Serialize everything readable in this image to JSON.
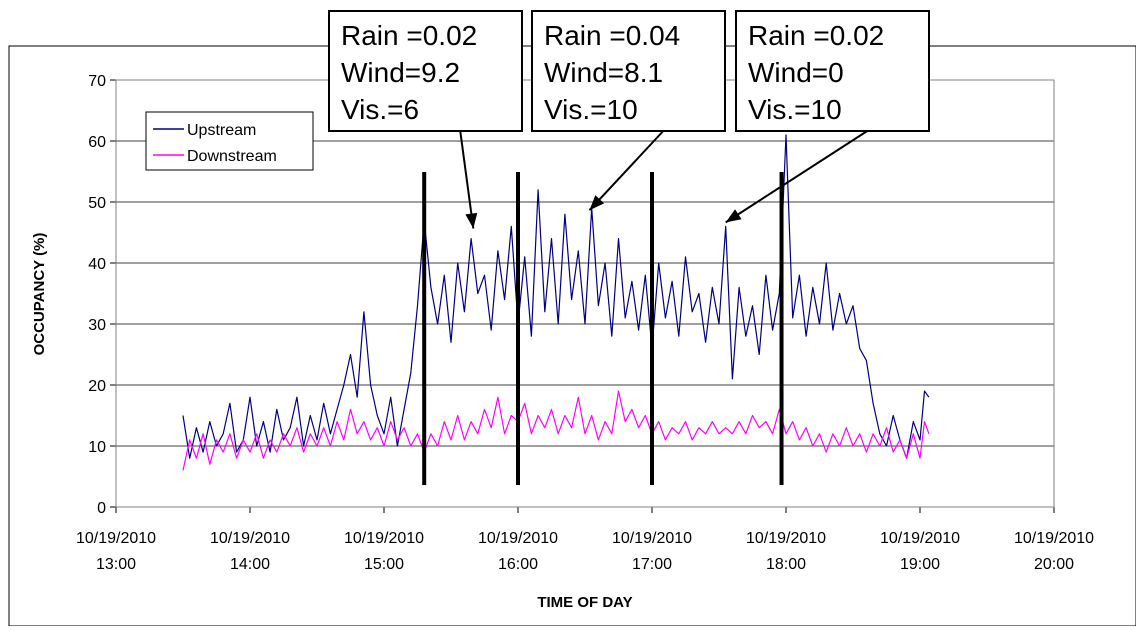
{
  "chart_data": {
    "type": "line",
    "xlabel": "TIME OF DAY",
    "ylabel": "OCCUPANCY (%)",
    "ylim": [
      0,
      70
    ],
    "y_ticks": [
      0,
      10,
      20,
      30,
      40,
      50,
      60,
      70
    ],
    "x_range": [
      "10/19/2010 13:00",
      "10/19/2010 20:00"
    ],
    "x_ticks": [
      {
        "date": "10/19/2010",
        "time": "13:00"
      },
      {
        "date": "10/19/2010",
        "time": "14:00"
      },
      {
        "date": "10/19/2010",
        "time": "15:00"
      },
      {
        "date": "10/19/2010",
        "time": "16:00"
      },
      {
        "date": "10/19/2010",
        "time": "17:00"
      },
      {
        "date": "10/19/2010",
        "time": "18:00"
      },
      {
        "date": "10/19/2010",
        "time": "19:00"
      },
      {
        "date": "10/19/2010",
        "time": "20:00"
      }
    ],
    "grid": true,
    "legend_position": "top-left",
    "series": [
      {
        "name": "Upstream",
        "color": "#000080",
        "points": [
          [
            "13:30",
            15
          ],
          [
            "13:33",
            8
          ],
          [
            "13:36",
            13
          ],
          [
            "13:39",
            9
          ],
          [
            "13:42",
            14
          ],
          [
            "13:45",
            10
          ],
          [
            "13:48",
            12
          ],
          [
            "13:51",
            17
          ],
          [
            "13:54",
            9
          ],
          [
            "13:57",
            11
          ],
          [
            "14:00",
            18
          ],
          [
            "14:03",
            10
          ],
          [
            "14:06",
            14
          ],
          [
            "14:09",
            9
          ],
          [
            "14:12",
            16
          ],
          [
            "14:15",
            11
          ],
          [
            "14:18",
            13
          ],
          [
            "14:21",
            18
          ],
          [
            "14:24",
            10
          ],
          [
            "14:27",
            15
          ],
          [
            "14:30",
            11
          ],
          [
            "14:33",
            17
          ],
          [
            "14:36",
            12
          ],
          [
            "14:39",
            16
          ],
          [
            "14:42",
            20
          ],
          [
            "14:45",
            25
          ],
          [
            "14:48",
            18
          ],
          [
            "14:51",
            32
          ],
          [
            "14:54",
            20
          ],
          [
            "14:57",
            15
          ],
          [
            "15:00",
            12
          ],
          [
            "15:03",
            18
          ],
          [
            "15:06",
            10
          ],
          [
            "15:09",
            16
          ],
          [
            "15:12",
            22
          ],
          [
            "15:15",
            33
          ],
          [
            "15:18",
            47
          ],
          [
            "15:21",
            36
          ],
          [
            "15:24",
            30
          ],
          [
            "15:27",
            38
          ],
          [
            "15:30",
            27
          ],
          [
            "15:33",
            40
          ],
          [
            "15:36",
            32
          ],
          [
            "15:39",
            44
          ],
          [
            "15:42",
            35
          ],
          [
            "15:45",
            38
          ],
          [
            "15:48",
            29
          ],
          [
            "15:51",
            42
          ],
          [
            "15:54",
            34
          ],
          [
            "15:57",
            46
          ],
          [
            "16:00",
            30
          ],
          [
            "16:03",
            41
          ],
          [
            "16:06",
            28
          ],
          [
            "16:09",
            52
          ],
          [
            "16:12",
            32
          ],
          [
            "16:15",
            44
          ],
          [
            "16:18",
            30
          ],
          [
            "16:21",
            48
          ],
          [
            "16:24",
            34
          ],
          [
            "16:27",
            42
          ],
          [
            "16:30",
            30
          ],
          [
            "16:33",
            49
          ],
          [
            "16:36",
            33
          ],
          [
            "16:39",
            40
          ],
          [
            "16:42",
            28
          ],
          [
            "16:45",
            44
          ],
          [
            "16:48",
            31
          ],
          [
            "16:51",
            37
          ],
          [
            "16:54",
            29
          ],
          [
            "16:57",
            38
          ],
          [
            "17:00",
            26
          ],
          [
            "17:03",
            40
          ],
          [
            "17:06",
            31
          ],
          [
            "17:09",
            37
          ],
          [
            "17:12",
            28
          ],
          [
            "17:15",
            41
          ],
          [
            "17:18",
            32
          ],
          [
            "17:21",
            35
          ],
          [
            "17:24",
            27
          ],
          [
            "17:27",
            36
          ],
          [
            "17:30",
            30
          ],
          [
            "17:33",
            46
          ],
          [
            "17:36",
            21
          ],
          [
            "17:39",
            36
          ],
          [
            "17:42",
            28
          ],
          [
            "17:45",
            33
          ],
          [
            "17:48",
            25
          ],
          [
            "17:51",
            38
          ],
          [
            "17:54",
            29
          ],
          [
            "17:57",
            35
          ],
          [
            "18:00",
            61
          ],
          [
            "18:03",
            31
          ],
          [
            "18:06",
            38
          ],
          [
            "18:09",
            28
          ],
          [
            "18:12",
            36
          ],
          [
            "18:15",
            30
          ],
          [
            "18:18",
            40
          ],
          [
            "18:21",
            29
          ],
          [
            "18:24",
            35
          ],
          [
            "18:27",
            30
          ],
          [
            "18:30",
            33
          ],
          [
            "18:33",
            26
          ],
          [
            "18:36",
            24
          ],
          [
            "18:39",
            17
          ],
          [
            "18:42",
            12
          ],
          [
            "18:45",
            10
          ],
          [
            "18:48",
            15
          ],
          [
            "18:51",
            11
          ],
          [
            "18:54",
            8
          ],
          [
            "18:57",
            14
          ],
          [
            "19:00",
            11
          ],
          [
            "19:02",
            19
          ],
          [
            "19:04",
            18
          ]
        ]
      },
      {
        "name": "Downstream",
        "color": "#ff00ff",
        "points": [
          [
            "13:30",
            6
          ],
          [
            "13:33",
            11
          ],
          [
            "13:36",
            8
          ],
          [
            "13:39",
            12
          ],
          [
            "13:42",
            7
          ],
          [
            "13:45",
            11
          ],
          [
            "13:48",
            9
          ],
          [
            "13:51",
            12
          ],
          [
            "13:54",
            8
          ],
          [
            "13:57",
            11
          ],
          [
            "14:00",
            9
          ],
          [
            "14:03",
            12
          ],
          [
            "14:06",
            8
          ],
          [
            "14:09",
            11
          ],
          [
            "14:12",
            9
          ],
          [
            "14:15",
            12
          ],
          [
            "14:18",
            10
          ],
          [
            "14:21",
            13
          ],
          [
            "14:24",
            9
          ],
          [
            "14:27",
            12
          ],
          [
            "14:30",
            10
          ],
          [
            "14:33",
            13
          ],
          [
            "14:36",
            10
          ],
          [
            "14:39",
            14
          ],
          [
            "14:42",
            11
          ],
          [
            "14:45",
            16
          ],
          [
            "14:48",
            12
          ],
          [
            "14:51",
            14
          ],
          [
            "14:54",
            11
          ],
          [
            "14:57",
            13
          ],
          [
            "15:00",
            10
          ],
          [
            "15:03",
            14
          ],
          [
            "15:06",
            11
          ],
          [
            "15:09",
            13
          ],
          [
            "15:12",
            10
          ],
          [
            "15:15",
            12
          ],
          [
            "15:18",
            9
          ],
          [
            "15:21",
            12
          ],
          [
            "15:24",
            10
          ],
          [
            "15:27",
            14
          ],
          [
            "15:30",
            11
          ],
          [
            "15:33",
            15
          ],
          [
            "15:36",
            11
          ],
          [
            "15:39",
            14
          ],
          [
            "15:42",
            12
          ],
          [
            "15:45",
            16
          ],
          [
            "15:48",
            13
          ],
          [
            "15:51",
            18
          ],
          [
            "15:54",
            12
          ],
          [
            "15:57",
            15
          ],
          [
            "16:00",
            14
          ],
          [
            "16:03",
            17
          ],
          [
            "16:06",
            12
          ],
          [
            "16:09",
            15
          ],
          [
            "16:12",
            13
          ],
          [
            "16:15",
            16
          ],
          [
            "16:18",
            12
          ],
          [
            "16:21",
            15
          ],
          [
            "16:24",
            13
          ],
          [
            "16:27",
            18
          ],
          [
            "16:30",
            12
          ],
          [
            "16:33",
            15
          ],
          [
            "16:36",
            11
          ],
          [
            "16:39",
            14
          ],
          [
            "16:42",
            12
          ],
          [
            "16:45",
            19
          ],
          [
            "16:48",
            14
          ],
          [
            "16:51",
            16
          ],
          [
            "16:54",
            13
          ],
          [
            "16:57",
            15
          ],
          [
            "17:00",
            12
          ],
          [
            "17:03",
            14
          ],
          [
            "17:06",
            11
          ],
          [
            "17:09",
            13
          ],
          [
            "17:12",
            12
          ],
          [
            "17:15",
            14
          ],
          [
            "17:18",
            11
          ],
          [
            "17:21",
            13
          ],
          [
            "17:24",
            12
          ],
          [
            "17:27",
            14
          ],
          [
            "17:30",
            12
          ],
          [
            "17:33",
            13
          ],
          [
            "17:36",
            12
          ],
          [
            "17:39",
            14
          ],
          [
            "17:42",
            12
          ],
          [
            "17:45",
            15
          ],
          [
            "17:48",
            13
          ],
          [
            "17:51",
            14
          ],
          [
            "17:54",
            12
          ],
          [
            "17:57",
            16
          ],
          [
            "18:00",
            12
          ],
          [
            "18:03",
            14
          ],
          [
            "18:06",
            11
          ],
          [
            "18:09",
            13
          ],
          [
            "18:12",
            10
          ],
          [
            "18:15",
            12
          ],
          [
            "18:18",
            9
          ],
          [
            "18:21",
            12
          ],
          [
            "18:24",
            10
          ],
          [
            "18:27",
            13
          ],
          [
            "18:30",
            10
          ],
          [
            "18:33",
            12
          ],
          [
            "18:36",
            9
          ],
          [
            "18:39",
            12
          ],
          [
            "18:42",
            10
          ],
          [
            "18:45",
            13
          ],
          [
            "18:48",
            9
          ],
          [
            "18:51",
            11
          ],
          [
            "18:54",
            8
          ],
          [
            "18:57",
            12
          ],
          [
            "19:00",
            8
          ],
          [
            "19:02",
            14
          ],
          [
            "19:04",
            12
          ]
        ]
      }
    ],
    "markers": [
      "15:18",
      "16:00",
      "17:00",
      "17:58"
    ],
    "annotations": [
      {
        "lines": [
          "Rain =0.02",
          "Wind=9.2",
          "Vis.=6"
        ],
        "points_to": {
          "x": "15:40",
          "y": 45
        }
      },
      {
        "lines": [
          "Rain =0.04",
          "Wind=8.1",
          "Vis.=10"
        ],
        "points_to": {
          "x": "16:32",
          "y": 48
        }
      },
      {
        "lines": [
          "Rain =0.02",
          "Wind=0",
          "Vis.=10"
        ],
        "points_to": {
          "x": "17:33",
          "y": 46
        }
      }
    ]
  }
}
